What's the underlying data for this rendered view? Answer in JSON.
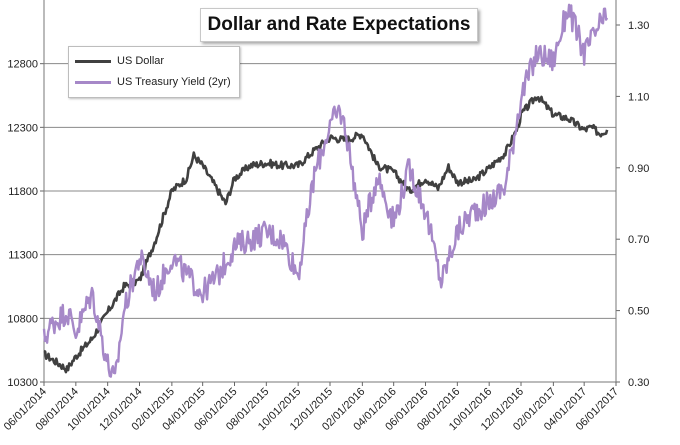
{
  "chart_data": {
    "type": "line",
    "title": "Dollar and Rate Expectations",
    "x_tick_labels": [
      "06/01/2014",
      "08/01/2014",
      "10/01/2014",
      "12/01/2014",
      "02/01/2015",
      "04/01/2015",
      "06/01/2015",
      "08/01/2015",
      "10/01/2015",
      "12/01/2015",
      "02/01/2016",
      "04/01/2016",
      "06/01/2016",
      "08/01/2016",
      "10/01/2016",
      "12/01/2016",
      "02/01/2017",
      "04/01/2017",
      "06/01/2017"
    ],
    "y_left": {
      "ticks": [
        10300,
        10800,
        11300,
        11800,
        12300,
        12800
      ],
      "ylim": [
        10300,
        13300
      ]
    },
    "y_right": {
      "ticks": [
        "0.30",
        "0.50",
        "0.70",
        "0.90",
        "1.10",
        "1.30"
      ],
      "ylim": [
        0.3,
        1.37
      ]
    },
    "grid": true,
    "legend_position": "top-left",
    "series": [
      {
        "name": "US Dollar",
        "axis": "left",
        "color": "#404040",
        "points": [
          [
            "2014-06-01",
            10520
          ],
          [
            "2014-07-01",
            10440
          ],
          [
            "2014-07-15",
            10400
          ],
          [
            "2014-08-01",
            10500
          ],
          [
            "2014-09-01",
            10640
          ],
          [
            "2014-10-01",
            10850
          ],
          [
            "2014-11-01",
            11050
          ],
          [
            "2014-12-01",
            11100
          ],
          [
            "2015-01-01",
            11420
          ],
          [
            "2015-02-01",
            11800
          ],
          [
            "2015-03-01",
            11900
          ],
          [
            "2015-03-15",
            12080
          ],
          [
            "2015-04-01",
            12000
          ],
          [
            "2015-05-01",
            11800
          ],
          [
            "2015-05-15",
            11700
          ],
          [
            "2015-06-01",
            11900
          ],
          [
            "2015-07-01",
            12000
          ],
          [
            "2015-08-01",
            12020
          ],
          [
            "2015-09-01",
            12000
          ],
          [
            "2015-10-01",
            12000
          ],
          [
            "2015-11-01",
            12120
          ],
          [
            "2015-12-01",
            12220
          ],
          [
            "2016-01-01",
            12200
          ],
          [
            "2016-02-01",
            12250
          ],
          [
            "2016-03-01",
            12000
          ],
          [
            "2016-04-01",
            11950
          ],
          [
            "2016-05-01",
            11800
          ],
          [
            "2016-06-01",
            11900
          ],
          [
            "2016-06-25",
            11820
          ],
          [
            "2016-07-15",
            11990
          ],
          [
            "2016-08-01",
            11870
          ],
          [
            "2016-09-01",
            11880
          ],
          [
            "2016-10-01",
            11980
          ],
          [
            "2016-11-01",
            12100
          ],
          [
            "2016-11-25",
            12300
          ],
          [
            "2016-12-01",
            12400
          ],
          [
            "2017-01-01",
            12550
          ],
          [
            "2017-02-01",
            12400
          ],
          [
            "2017-03-01",
            12370
          ],
          [
            "2017-04-01",
            12280
          ],
          [
            "2017-04-15",
            12300
          ],
          [
            "2017-05-01",
            12250
          ],
          [
            "2017-05-15",
            12280
          ]
        ]
      },
      {
        "name": "US Treasury Yield (2yr)",
        "axis": "right",
        "color": "#a688c8",
        "points": [
          [
            "2014-06-01",
            0.42
          ],
          [
            "2014-06-15",
            0.46
          ],
          [
            "2014-07-01",
            0.48
          ],
          [
            "2014-07-15",
            0.5
          ],
          [
            "2014-08-01",
            0.44
          ],
          [
            "2014-09-01",
            0.55
          ],
          [
            "2014-10-01",
            0.35
          ],
          [
            "2014-10-15",
            0.3
          ],
          [
            "2014-11-01",
            0.5
          ],
          [
            "2014-12-01",
            0.65
          ],
          [
            "2015-01-01",
            0.55
          ],
          [
            "2015-02-01",
            0.65
          ],
          [
            "2015-03-01",
            0.6
          ],
          [
            "2015-04-01",
            0.55
          ],
          [
            "2015-05-01",
            0.6
          ],
          [
            "2015-06-01",
            0.68
          ],
          [
            "2015-07-01",
            0.7
          ],
          [
            "2015-08-01",
            0.72
          ],
          [
            "2015-09-01",
            0.7
          ],
          [
            "2015-10-01",
            0.6
          ],
          [
            "2015-11-01",
            0.88
          ],
          [
            "2015-12-01",
            1.02
          ],
          [
            "2015-12-20",
            1.06
          ],
          [
            "2016-01-01",
            1.0
          ],
          [
            "2016-02-01",
            0.72
          ],
          [
            "2016-03-01",
            0.88
          ],
          [
            "2016-04-01",
            0.75
          ],
          [
            "2016-05-01",
            0.9
          ],
          [
            "2016-06-01",
            0.78
          ],
          [
            "2016-07-01",
            0.58
          ],
          [
            "2016-08-01",
            0.72
          ],
          [
            "2016-09-01",
            0.78
          ],
          [
            "2016-10-01",
            0.8
          ],
          [
            "2016-11-01",
            0.85
          ],
          [
            "2016-12-01",
            1.1
          ],
          [
            "2017-01-01",
            1.22
          ],
          [
            "2017-02-01",
            1.2
          ],
          [
            "2017-03-01",
            1.35
          ],
          [
            "2017-04-01",
            1.22
          ],
          [
            "2017-05-01",
            1.3
          ],
          [
            "2017-05-15",
            1.32
          ]
        ]
      }
    ]
  }
}
